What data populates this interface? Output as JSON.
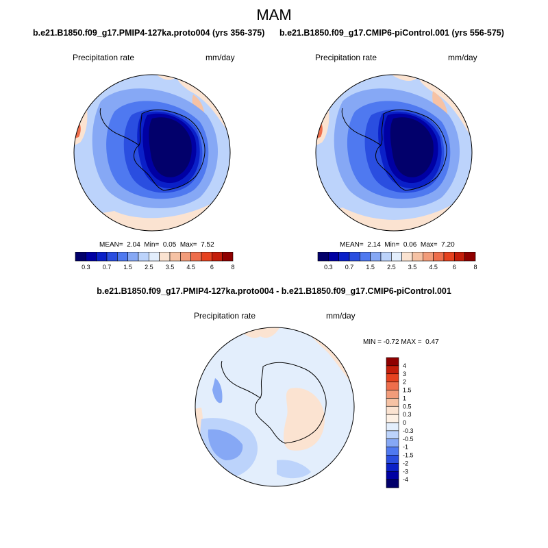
{
  "figure": {
    "title": "MAM"
  },
  "chart_data": [
    {
      "type": "heatmap",
      "projection": "south-polar-stereographic",
      "title": "b.e21.B1850.f09_g17.PMIP4-127ka.proto004 (yrs 356-375)",
      "variable": "Precipitation rate",
      "units": "mm/day",
      "stats": {
        "mean_label": "MEAN=",
        "mean": "2.04",
        "min_label": "Min=",
        "min": "0.05",
        "max_label": "Max=",
        "max": "7.52"
      },
      "colorbar": {
        "orientation": "horizontal",
        "levels": [
          "0.3",
          "0.7",
          "1.5",
          "2.5",
          "3.5",
          "4.5",
          "6",
          "8"
        ],
        "colors": [
          "#02006b",
          "#0000a3",
          "#0a20c8",
          "#2a4ee0",
          "#4f79f0",
          "#86a8f5",
          "#bcd3fb",
          "#e3eefc",
          "#fbe3d1",
          "#f6c2a4",
          "#f29c7a",
          "#ee6e4c",
          "#e6421f",
          "#c41d0a",
          "#8f0000"
        ]
      }
    },
    {
      "type": "heatmap",
      "projection": "south-polar-stereographic",
      "title": "b.e21.B1850.f09_g17.CMIP6-piControl.001 (yrs 556-575)",
      "variable": "Precipitation rate",
      "units": "mm/day",
      "stats": {
        "mean_label": "MEAN=",
        "mean": "2.14",
        "min_label": "Min=",
        "min": "0.06",
        "max_label": "Max=",
        "max": "7.20"
      },
      "colorbar": {
        "orientation": "horizontal",
        "levels": [
          "0.3",
          "0.7",
          "1.5",
          "2.5",
          "3.5",
          "4.5",
          "6",
          "8"
        ],
        "colors": [
          "#02006b",
          "#0000a3",
          "#0a20c8",
          "#2a4ee0",
          "#4f79f0",
          "#86a8f5",
          "#bcd3fb",
          "#e3eefc",
          "#fbe3d1",
          "#f6c2a4",
          "#f29c7a",
          "#ee6e4c",
          "#e6421f",
          "#c41d0a",
          "#8f0000"
        ]
      }
    },
    {
      "type": "heatmap",
      "projection": "south-polar-stereographic",
      "title": "b.e21.B1850.f09_g17.PMIP4-127ka.proto004 - b.e21.B1850.f09_g17.CMIP6-piControl.001",
      "variable": "Precipitation rate",
      "units": "mm/day",
      "stats": {
        "min_label": "MIN =",
        "min": "-0.72",
        "max_label": "MAX =",
        "max": "0.47"
      },
      "colorbar": {
        "orientation": "vertical",
        "levels": [
          "4",
          "3",
          "2",
          "1.5",
          "1",
          "0.5",
          "0.3",
          "0",
          "-0.3",
          "-0.5",
          "-1",
          "-1.5",
          "-2",
          "-3",
          "-4"
        ],
        "colors": [
          "#8f0000",
          "#c41d0a",
          "#e6421f",
          "#ee6e4c",
          "#f29c7a",
          "#f6c2a4",
          "#fbe3d1",
          "#fdf0e4",
          "#e3eefc",
          "#bcd3fb",
          "#86a8f5",
          "#4f79f0",
          "#2a4ee0",
          "#0a20c8",
          "#0000a3",
          "#02006b"
        ]
      }
    }
  ]
}
